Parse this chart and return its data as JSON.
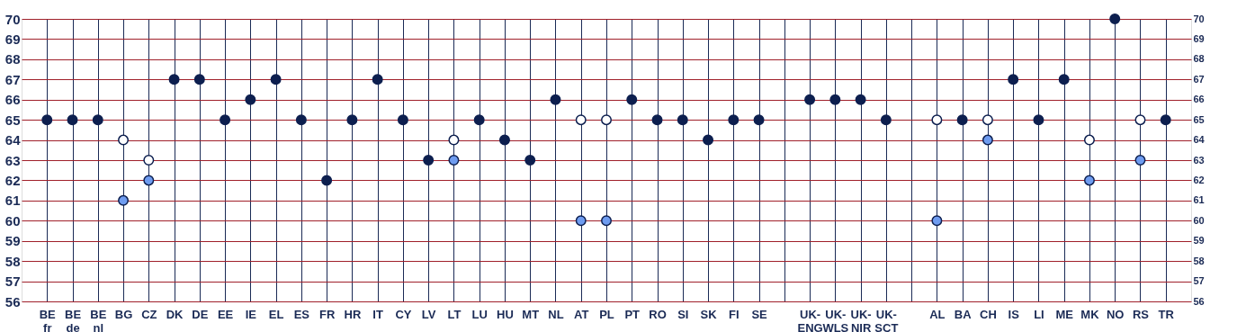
{
  "chart_data": {
    "type": "scatter",
    "marker": "circle",
    "grid": true,
    "categories": [
      "BE\nfr",
      "BE\nde",
      "BE\nnl",
      "BG",
      "CZ",
      "DK",
      "DE",
      "EE",
      "IE",
      "EL",
      "ES",
      "FR",
      "HR",
      "IT",
      "CY",
      "LV",
      "LT",
      "LU",
      "HU",
      "MT",
      "NL",
      "AT",
      "PL",
      "PT",
      "RO",
      "SI",
      "SK",
      "FI",
      "SE",
      null,
      "UK-\nENG",
      "UK-\nWLS",
      "UK-\nNIR",
      "UK-\nSCT",
      null,
      "AL",
      "BA",
      "CH",
      "IS",
      "LI",
      "ME",
      "MK",
      "NO",
      "RS",
      "TR"
    ],
    "series": [
      {
        "color": "#0d1f4f",
        "values": [
          65,
          65,
          65,
          null,
          null,
          67,
          67,
          65,
          66,
          67,
          65,
          62,
          65,
          67,
          65,
          63,
          null,
          65,
          64,
          63,
          66,
          null,
          null,
          66,
          65,
          65,
          64,
          65,
          65,
          null,
          66,
          66,
          66,
          65,
          null,
          null,
          65,
          null,
          67,
          65,
          67,
          null,
          70,
          null,
          65
        ]
      },
      {
        "color": "#ffffff",
        "values": [
          null,
          null,
          null,
          64,
          63,
          null,
          null,
          null,
          null,
          null,
          null,
          null,
          null,
          null,
          null,
          null,
          64,
          null,
          null,
          null,
          null,
          65,
          65,
          null,
          null,
          null,
          null,
          null,
          null,
          null,
          null,
          null,
          null,
          null,
          null,
          65,
          null,
          65,
          null,
          null,
          null,
          64,
          null,
          65,
          null
        ]
      },
      {
        "color": "#6f9cf0",
        "values": [
          null,
          null,
          null,
          61,
          62,
          null,
          null,
          null,
          null,
          null,
          null,
          null,
          null,
          null,
          null,
          null,
          63,
          null,
          null,
          null,
          null,
          60,
          60,
          null,
          null,
          null,
          null,
          null,
          null,
          null,
          null,
          null,
          null,
          null,
          null,
          60,
          null,
          64,
          null,
          null,
          null,
          62,
          null,
          63,
          null
        ]
      }
    ],
    "ylim": [
      56,
      70
    ],
    "yticks": [
      56,
      57,
      58,
      59,
      60,
      61,
      62,
      63,
      64,
      65,
      66,
      67,
      68,
      69,
      70
    ],
    "y2lim": [
      56,
      70
    ],
    "y2ticks": [
      56,
      57,
      58,
      59,
      60,
      61,
      62,
      63,
      64,
      65,
      66,
      67,
      68,
      69,
      70
    ]
  }
}
